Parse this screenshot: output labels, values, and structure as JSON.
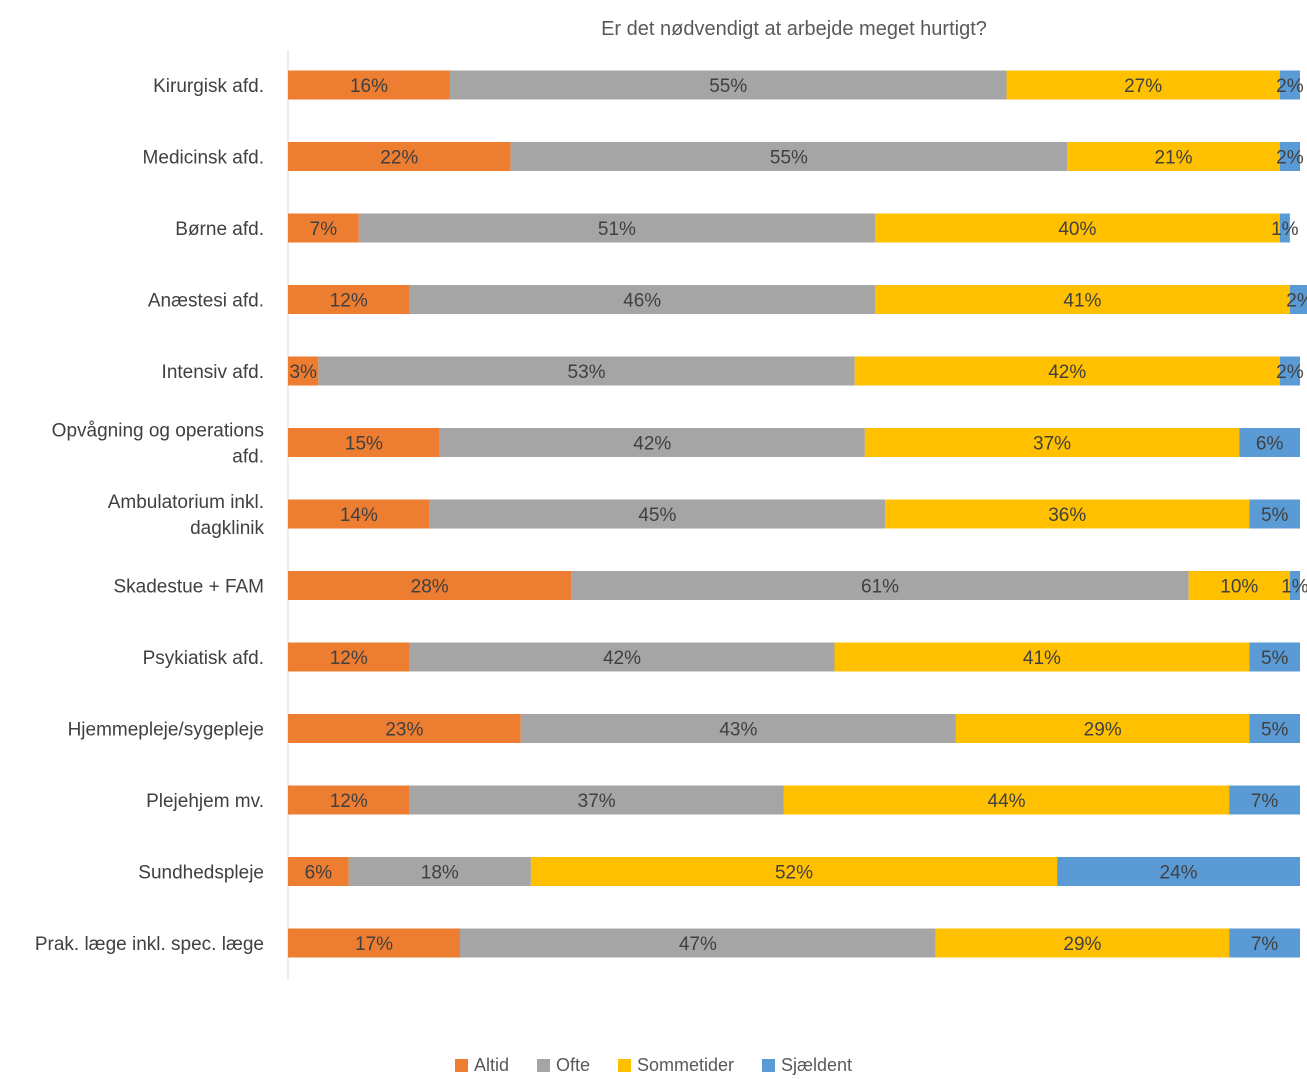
{
  "chart_data": {
    "type": "bar",
    "orientation": "horizontal",
    "stacked": true,
    "title": "Er det nødvendigt at arbejde meget hurtigt?",
    "categories": [
      "Kirurgisk afd.",
      "Medicinsk afd.",
      "Børne afd.",
      "Anæstesi afd.",
      "Intensiv afd.",
      "Opvågning og operations afd.",
      "Ambulatorium inkl. dagklinik",
      "Skadestue + FAM",
      "Psykiatisk afd.",
      "Hjemmepleje/sygepleje",
      "Plejehjem mv.",
      "Sundhedspleje",
      "Prak. læge inkl. spec. læge"
    ],
    "series": [
      {
        "name": "Altid",
        "color": "#ED7D31",
        "values": [
          16,
          22,
          7,
          12,
          3,
          15,
          14,
          28,
          12,
          23,
          12,
          6,
          17
        ]
      },
      {
        "name": "Ofte",
        "color": "#A5A5A5",
        "values": [
          55,
          55,
          51,
          46,
          53,
          42,
          45,
          61,
          42,
          43,
          37,
          18,
          47
        ]
      },
      {
        "name": "Sommetider",
        "color": "#FFC000",
        "values": [
          27,
          21,
          40,
          41,
          42,
          37,
          36,
          10,
          41,
          29,
          44,
          52,
          29
        ]
      },
      {
        "name": "Sjældent",
        "color": "#5B9BD5",
        "values": [
          2,
          2,
          1,
          2,
          2,
          6,
          5,
          1,
          5,
          5,
          7,
          24,
          7
        ]
      }
    ],
    "value_suffix": "%",
    "xlim": [
      0,
      100
    ],
    "legend_position": "bottom",
    "grid": false
  }
}
